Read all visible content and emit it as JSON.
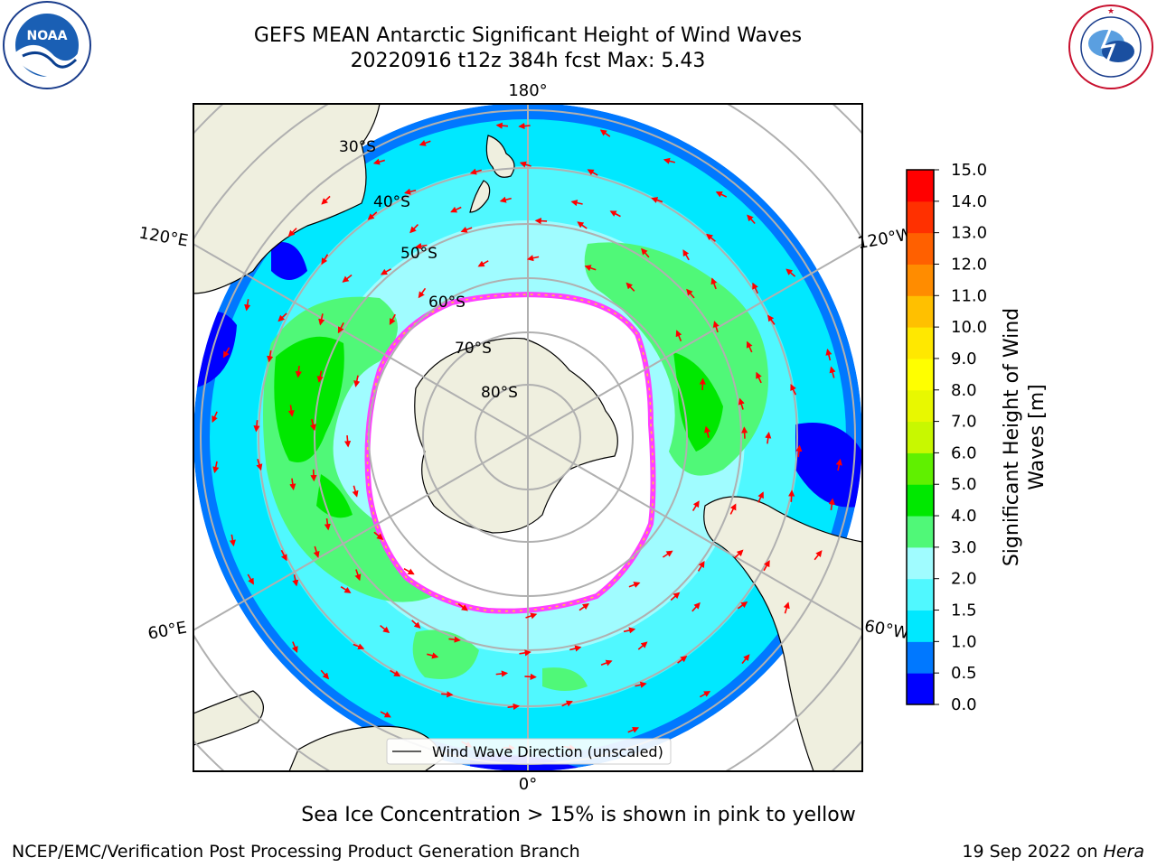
{
  "header": {
    "title_line1": "GEFS MEAN Antarctic Significant Height of Wind Waves",
    "title_line2": "20220916 t12z 384h fcst   Max: 5.43"
  },
  "logos": {
    "left_name": "NOAA",
    "left_ring_text": "NATIONAL OCEANIC AND ATMOSPHERIC ADMINISTRATION · U.S. DEPARTMENT OF COMMERCE",
    "right_ring_text": "NATIONAL WEATHER SERVICE"
  },
  "map": {
    "projection": "south-polar-stereographic",
    "longitude_labels": {
      "top": "180°",
      "bottom": "0°",
      "upper_left": "120°E",
      "lower_left": "60°E",
      "upper_right": "120°W",
      "lower_right": "60°W"
    },
    "latitude_labels": [
      "30°S",
      "40°S",
      "50°S",
      "60°S",
      "70°S",
      "80°S"
    ],
    "legend_label": "Wind Wave Direction (unscaled)",
    "colors": {
      "land": "#efefdf",
      "ice": "#ffffff",
      "ice_edge": [
        "#ff40ff",
        "#ffa0ff",
        "#ffd030"
      ],
      "arrow": "#ff0000",
      "grid": "#b0b0b0"
    }
  },
  "colorbar": {
    "title_line1": "Significant Height of Wind",
    "title_line2": "Waves [m]",
    "ticks": [
      "0.0",
      "0.5",
      "1.0",
      "1.5",
      "2.0",
      "3.0",
      "4.0",
      "5.0",
      "6.0",
      "7.0",
      "8.0",
      "9.0",
      "10.0",
      "11.0",
      "12.0",
      "13.0",
      "14.0",
      "15.0"
    ],
    "colors": [
      "#0000ff",
      "#0078ff",
      "#00e8ff",
      "#50f8ff",
      "#a0fcff",
      "#50f878",
      "#00e800",
      "#60f000",
      "#c8f800",
      "#e8f800",
      "#ffff00",
      "#ffe800",
      "#ffc000",
      "#ff8c00",
      "#ff6000",
      "#ff3000",
      "#ff0000"
    ]
  },
  "footer": {
    "note": "Sea Ice Concentration > 15% is shown in pink to yellow",
    "credit": "NCEP/EMC/Verification Post Processing Product Generation Branch",
    "date_text": "19 Sep 2022 on ",
    "host": "Hera"
  }
}
